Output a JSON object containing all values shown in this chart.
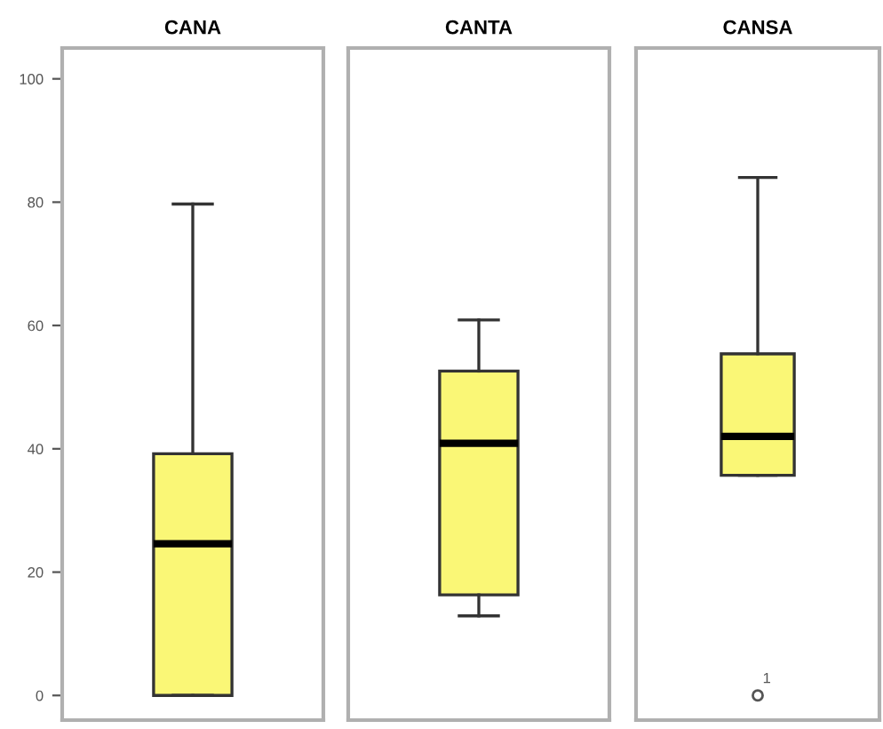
{
  "chart_data": [
    {
      "type": "box",
      "categories": [
        "CANA"
      ],
      "ylim": [
        -4,
        105
      ],
      "yticks": [
        0,
        20,
        40,
        60,
        80,
        100
      ],
      "tick_labels": "y",
      "grid": false,
      "series": [
        {
          "color": "#faf776",
          "boxes": [
            {
              "low": 0,
              "q1": 0,
              "median": 24.6,
              "q3": 39.2,
              "high": 79.7
            }
          ]
        }
      ]
    },
    {
      "type": "box",
      "categories": [
        "CANTA"
      ],
      "ylim": [
        -4,
        105
      ],
      "yticks": [
        0,
        20,
        40,
        60,
        80,
        100
      ],
      "tick_labels": false,
      "grid": false,
      "series": [
        {
          "color": "#faf776",
          "boxes": [
            {
              "low": 12.9,
              "q1": 16.3,
              "median": 40.9,
              "q3": 52.6,
              "high": 60.9
            }
          ]
        }
      ]
    },
    {
      "type": "box",
      "categories": [
        "CANSA"
      ],
      "ylim": [
        -4,
        105
      ],
      "yticks": [
        0,
        20,
        40,
        60,
        80,
        100
      ],
      "tick_labels": false,
      "grid": false,
      "annotations": [
        "1"
      ],
      "series": [
        {
          "color": "#faf776",
          "boxes": [
            {
              "low": 35.7,
              "q1": 35.7,
              "median": 42,
              "q3": 55.4,
              "high": 84,
              "outliers": [
                0
              ]
            }
          ]
        }
      ]
    }
  ]
}
